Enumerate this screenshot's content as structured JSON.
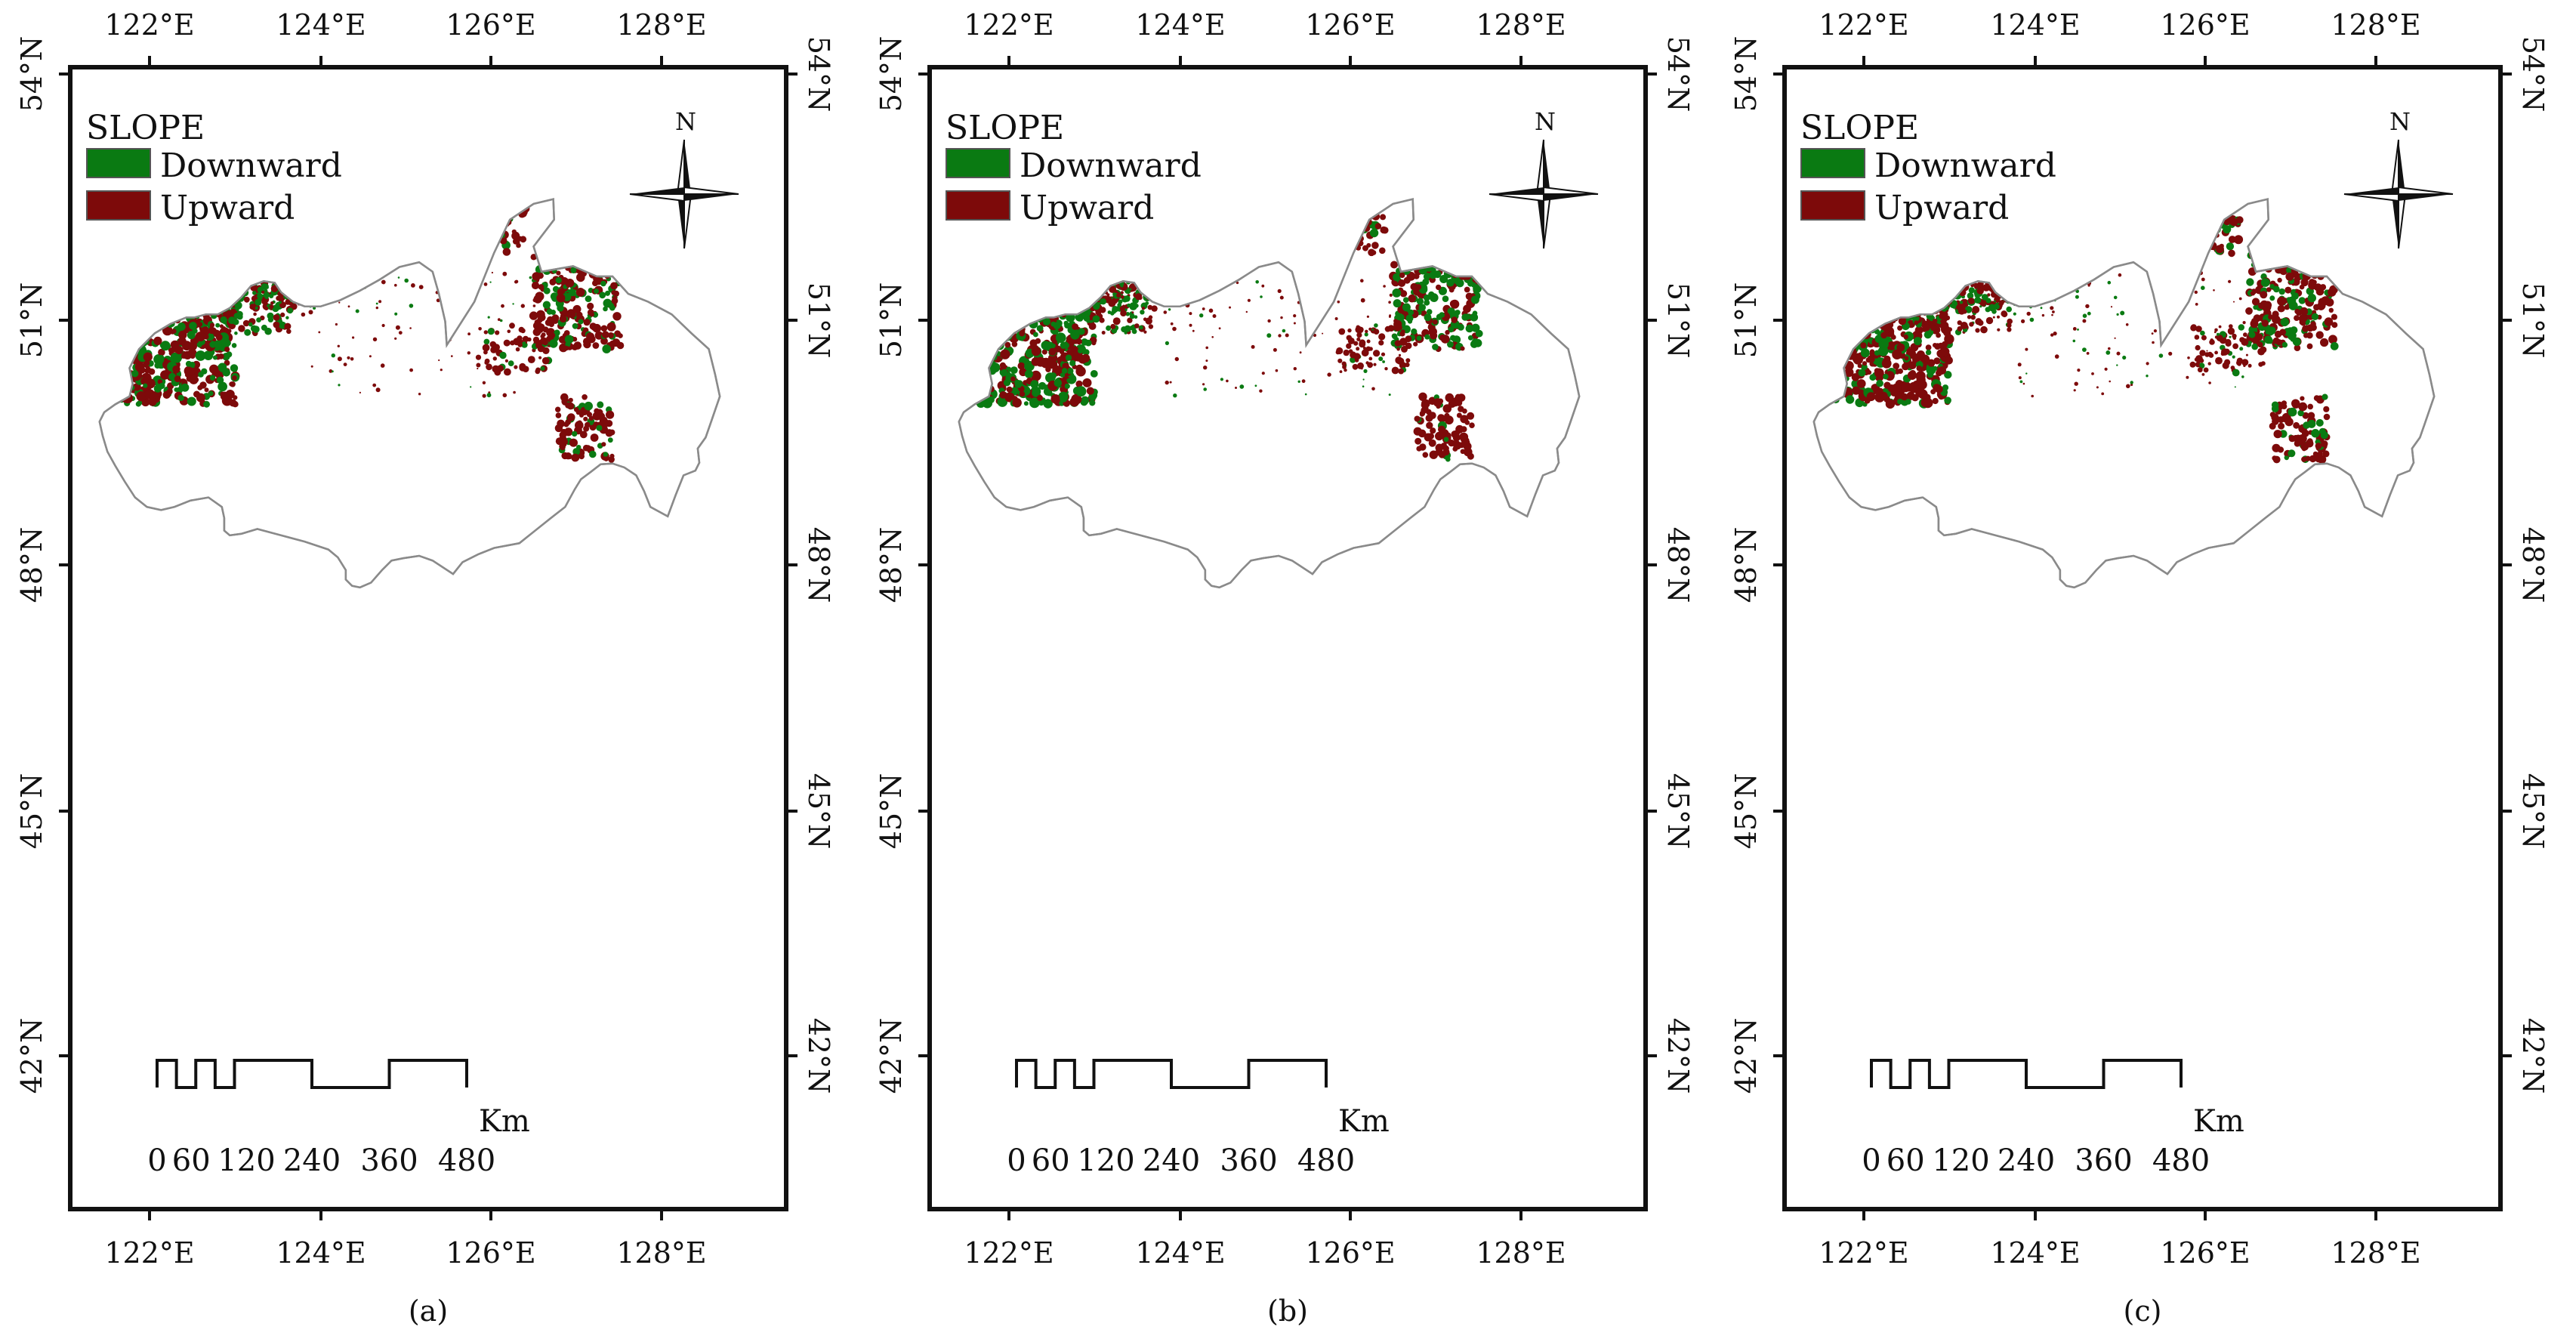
{
  "panels": [
    {
      "caption": "(a)",
      "legend": {
        "title": "SLOPE",
        "items": [
          {
            "label": "Downward",
            "color": "#0a7a12"
          },
          {
            "label": "Upward",
            "color": "#7d0a0a"
          }
        ]
      },
      "north_label": "N",
      "lon_labels": [
        "122°E",
        "124°E",
        "126°E",
        "128°E"
      ],
      "lat_labels": [
        "54°N",
        "51°N",
        "48°N",
        "45°N",
        "42°N"
      ],
      "scale": {
        "unit": "Km",
        "labels": [
          "0",
          "60",
          "120",
          "240",
          "360",
          "480"
        ]
      },
      "slope_mix": {
        "upward_share": 0.58
      }
    },
    {
      "caption": "(b)",
      "legend": {
        "title": "SLOPE",
        "items": [
          {
            "label": "Downward",
            "color": "#0a7a12"
          },
          {
            "label": "Upward",
            "color": "#7d0a0a"
          }
        ]
      },
      "north_label": "N",
      "lon_labels": [
        "122°E",
        "124°E",
        "126°E",
        "128°E"
      ],
      "lat_labels": [
        "54°N",
        "51°N",
        "48°N",
        "45°N",
        "42°N"
      ],
      "scale": {
        "unit": "Km",
        "labels": [
          "0",
          "60",
          "120",
          "240",
          "360",
          "480"
        ]
      },
      "slope_mix": {
        "upward_share": 0.5
      }
    },
    {
      "caption": "(c)",
      "legend": {
        "title": "SLOPE",
        "items": [
          {
            "label": "Downward",
            "color": "#0a7a12"
          },
          {
            "label": "Upward",
            "color": "#7d0a0a"
          }
        ]
      },
      "north_label": "N",
      "lon_labels": [
        "122°E",
        "124°E",
        "126°E",
        "128°E"
      ],
      "lat_labels": [
        "54°N",
        "51°N",
        "48°N",
        "45°N",
        "42°N"
      ],
      "scale": {
        "unit": "Km",
        "labels": [
          "0",
          "60",
          "120",
          "240",
          "360",
          "480"
        ]
      },
      "slope_mix": {
        "upward_share": 0.66
      }
    }
  ],
  "colors": {
    "downward": "#0a7a12",
    "upward": "#7d0a0a",
    "outline": "#8a8a8a",
    "frame": "#111111"
  }
}
